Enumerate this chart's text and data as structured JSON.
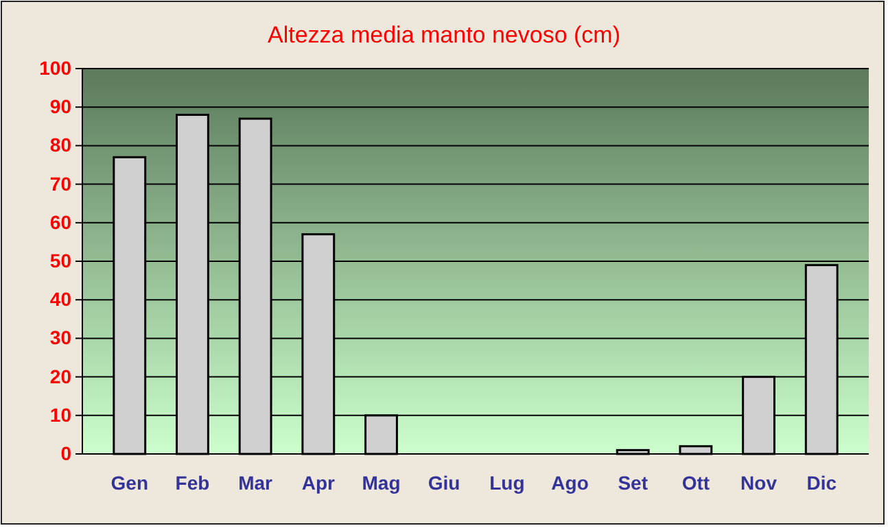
{
  "chart_data": {
    "type": "bar",
    "title": "Altezza media manto nevoso (cm)",
    "categories": [
      "Gen",
      "Feb",
      "Mar",
      "Apr",
      "Mag",
      "Giu",
      "Lug",
      "Ago",
      "Set",
      "Ott",
      "Nov",
      "Dic"
    ],
    "values": [
      77,
      88,
      87,
      57,
      10,
      0,
      0,
      0,
      1,
      2,
      20,
      49
    ],
    "color": "#d0d0d0",
    "ylim": [
      0,
      100
    ],
    "yticks": [
      0,
      10,
      20,
      30,
      40,
      50,
      60,
      70,
      80,
      90,
      100
    ],
    "grid": "y"
  }
}
